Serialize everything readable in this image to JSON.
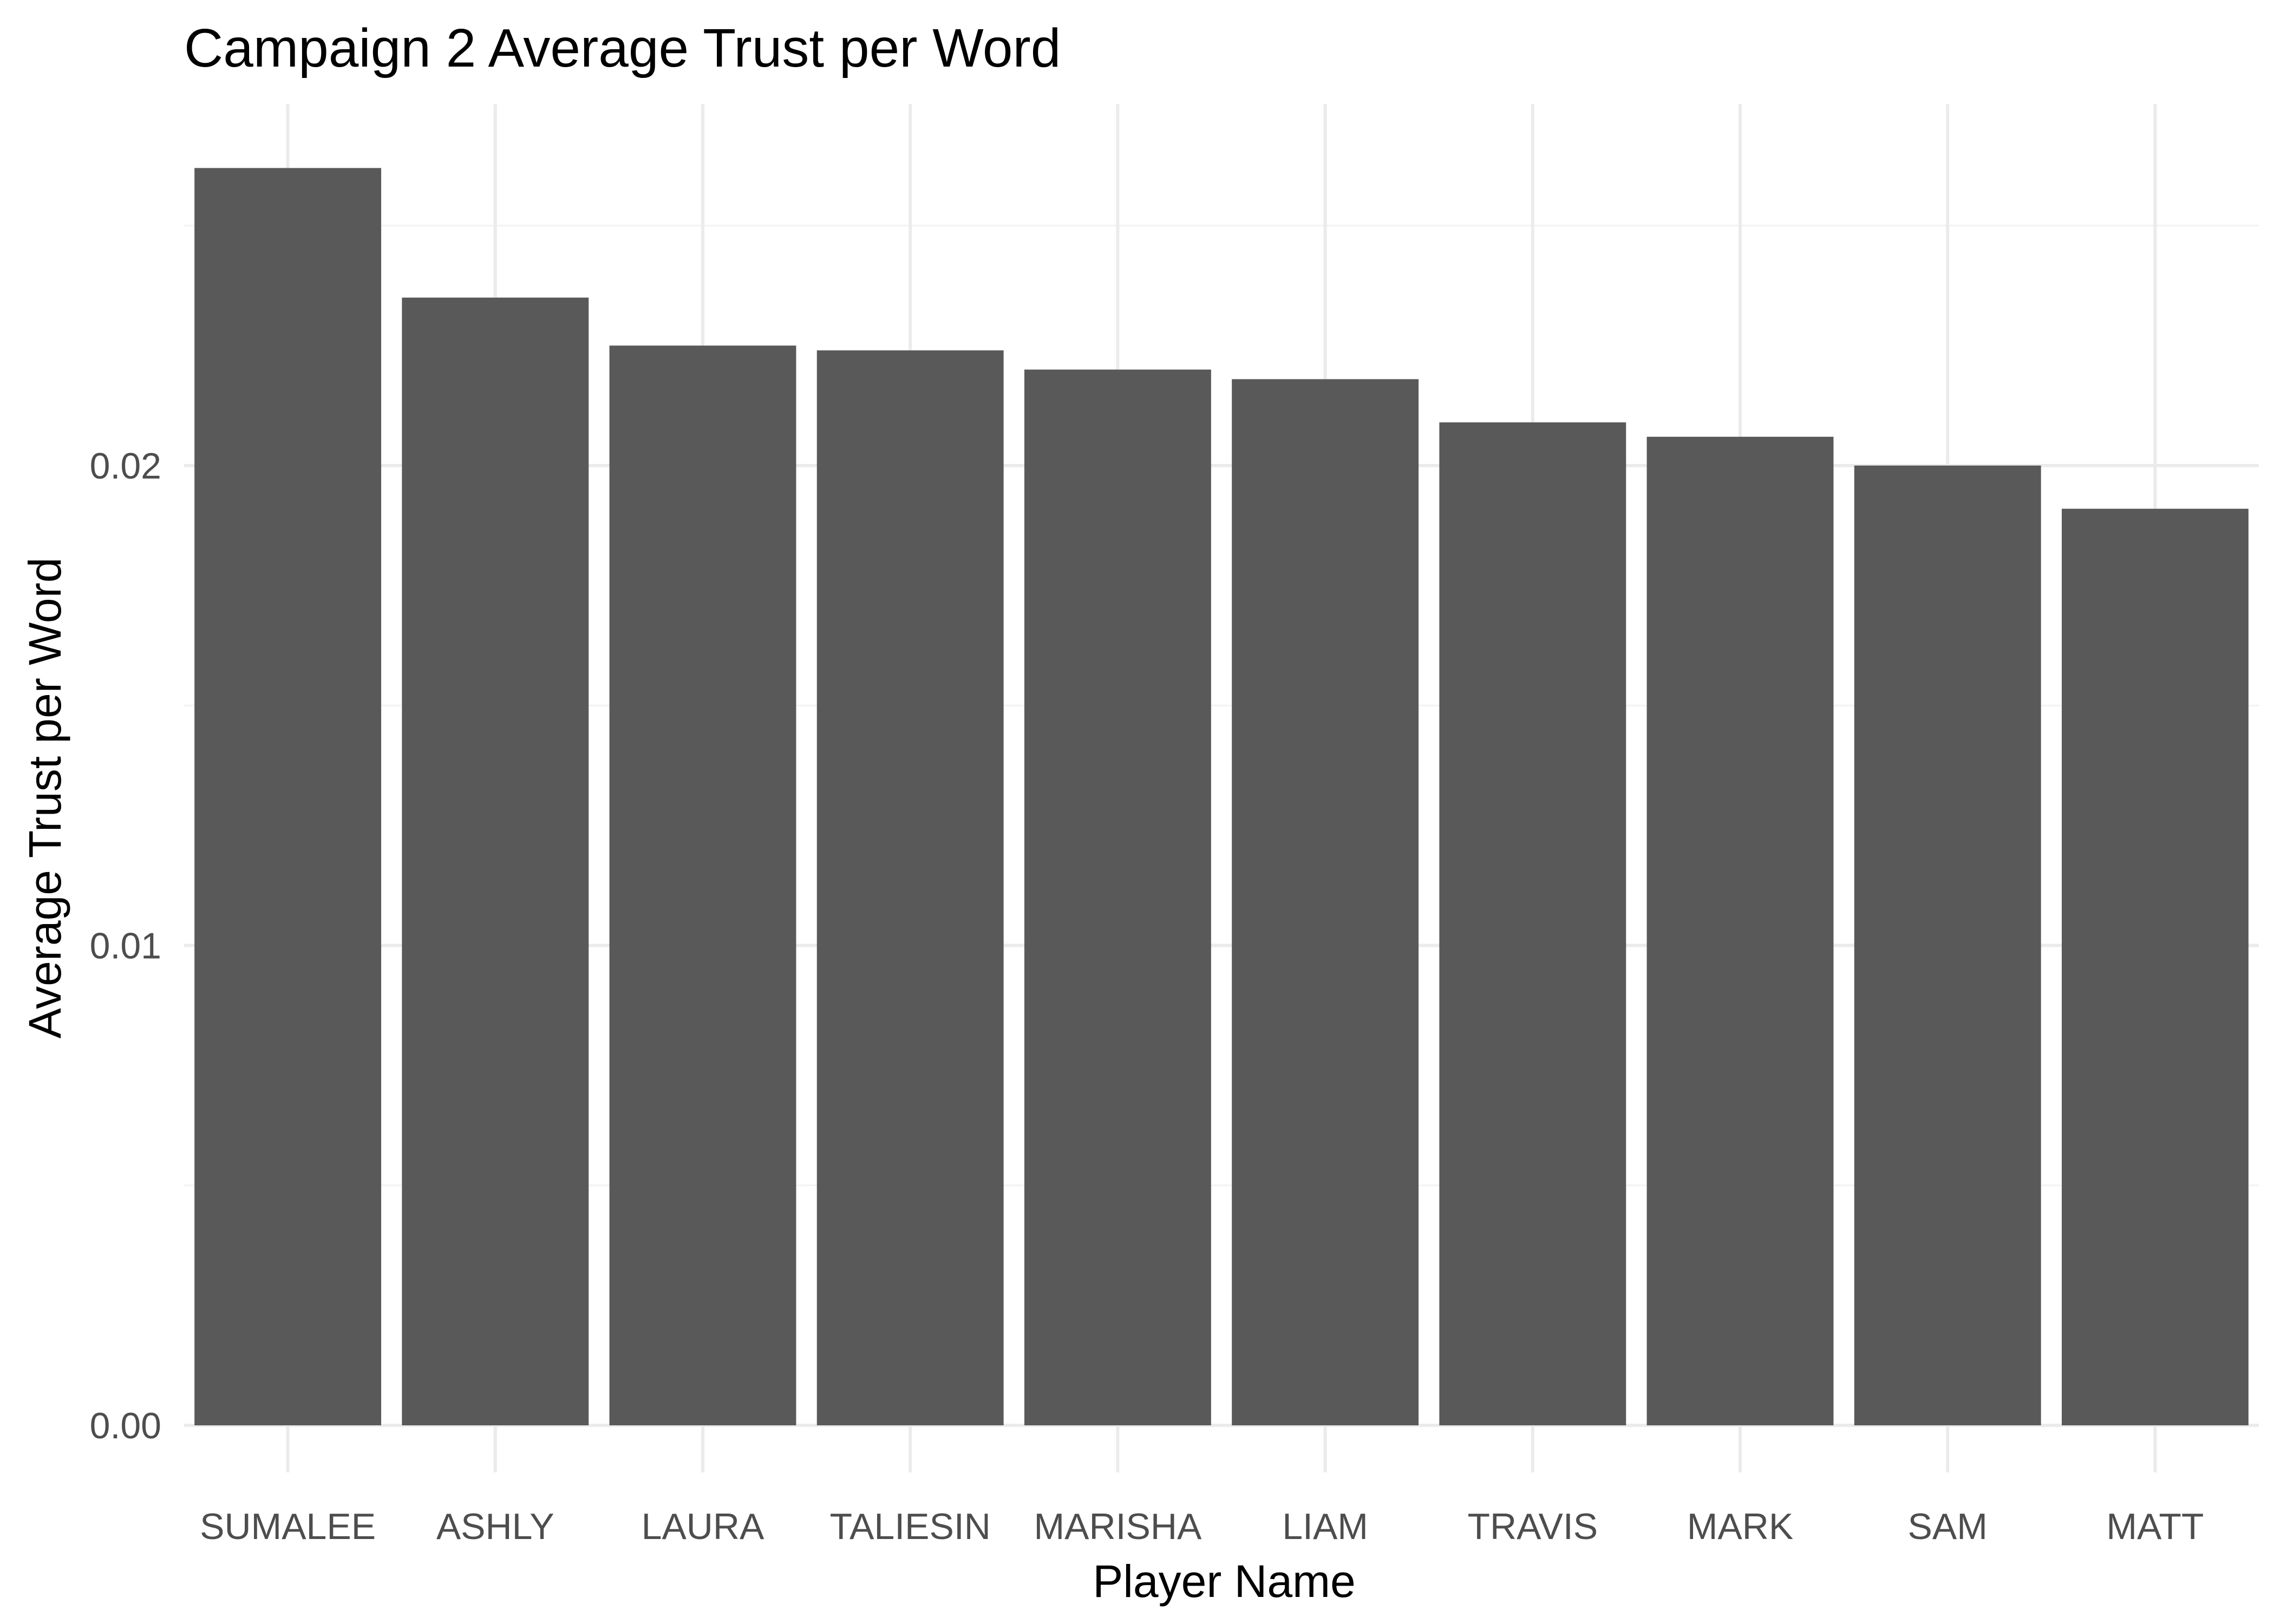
{
  "chart_data": {
    "type": "bar",
    "title": "Campaign 2 Average Trust per Word",
    "xlabel": "Player Name",
    "ylabel": "Average Trust per Word",
    "categories": [
      "SUMALEE",
      "ASHLY",
      "LAURA",
      "TALIESIN",
      "MARISHA",
      "LIAM",
      "TRAVIS",
      "MARK",
      "SAM",
      "MATT"
    ],
    "values": [
      0.0262,
      0.0235,
      0.0225,
      0.0224,
      0.022,
      0.0218,
      0.0209,
      0.0206,
      0.02,
      0.0191
    ],
    "ylim": [
      0,
      0.0275
    ],
    "yticks": [
      0.0,
      0.01,
      0.02
    ],
    "ytick_labels": [
      "0.00",
      "0.01",
      "0.02"
    ],
    "grid": true,
    "legend": "none",
    "bar_color": "#595959"
  }
}
